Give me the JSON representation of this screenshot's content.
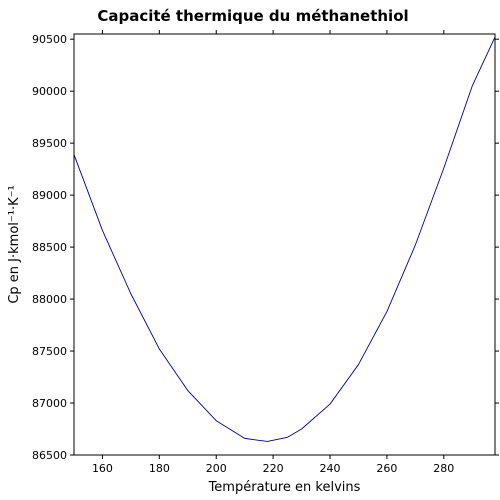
{
  "chart_data": {
    "type": "line",
    "title": "Capacité thermique du méthanethiol",
    "xlabel": "Température en kelvins",
    "ylabel": "Cp en J·kmol⁻¹·K⁻¹",
    "xlim": [
      150,
      298
    ],
    "ylim": [
      86500,
      90550
    ],
    "x_ticks": [
      160,
      180,
      200,
      220,
      240,
      260,
      280
    ],
    "y_ticks": [
      86500,
      87000,
      87500,
      88000,
      88500,
      89000,
      89500,
      90000,
      90500
    ],
    "x_tick_labels": [
      "160",
      "180",
      "200",
      "220",
      "240",
      "260",
      "280"
    ],
    "y_tick_labels": [
      "86500",
      "87000",
      "87500",
      "88000",
      "88500",
      "89000",
      "89500",
      "90000",
      "90500"
    ],
    "grid": false,
    "series": [
      {
        "color": "#00008b",
        "x": [
          150,
          160,
          170,
          180,
          190,
          200,
          210,
          218,
          225,
          230,
          240,
          250,
          260,
          270,
          280,
          290,
          298
        ],
        "y": [
          89390,
          88660,
          88050,
          87520,
          87120,
          86830,
          86660,
          86630,
          86670,
          86750,
          86990,
          87370,
          87880,
          88520,
          89260,
          90050,
          90520
        ]
      }
    ]
  }
}
